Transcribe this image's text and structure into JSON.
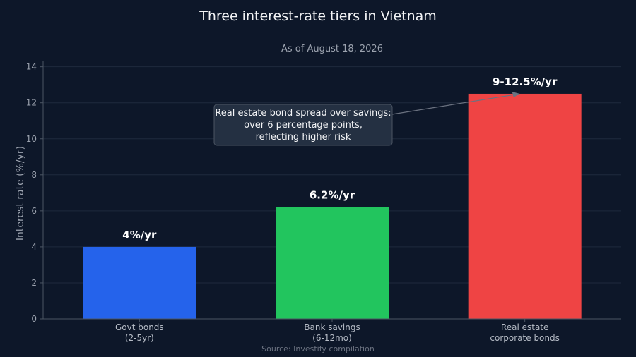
{
  "chart_data": {
    "type": "bar",
    "title": "Three interest-rate tiers in Vietnam",
    "subtitle": "As of August 18, 2026",
    "ylabel": "Interest rate (%/yr)",
    "xlabel": "",
    "ylim": [
      0,
      14.3
    ],
    "yticks": [
      0,
      2,
      4,
      6,
      8,
      10,
      12,
      14
    ],
    "grid": true,
    "categories": [
      [
        "Govt bonds",
        "(2-5yr)"
      ],
      [
        "Bank savings",
        "(6-12mo)"
      ],
      [
        "Real estate",
        "corporate bonds"
      ]
    ],
    "values": [
      4,
      6.2,
      12.5
    ],
    "data_labels": [
      "4%/yr",
      "6.2%/yr",
      "9-12.5%/yr"
    ],
    "colors": [
      "#2563eb",
      "#22c55e",
      "#ef4444"
    ],
    "annotation": {
      "lines": [
        "Real estate bond spread over savings:",
        "over 6 percentage points,",
        "reflecting higher risk"
      ],
      "target_category_index": 2,
      "target_value": 12.5
    },
    "source": "Source: Investify compilation"
  },
  "colors": {
    "background": "#0d1729",
    "grid": "#1e2a3d",
    "axis": "#4b5563",
    "annotation_box": "#243042",
    "annotation_border": "#4b5563"
  }
}
